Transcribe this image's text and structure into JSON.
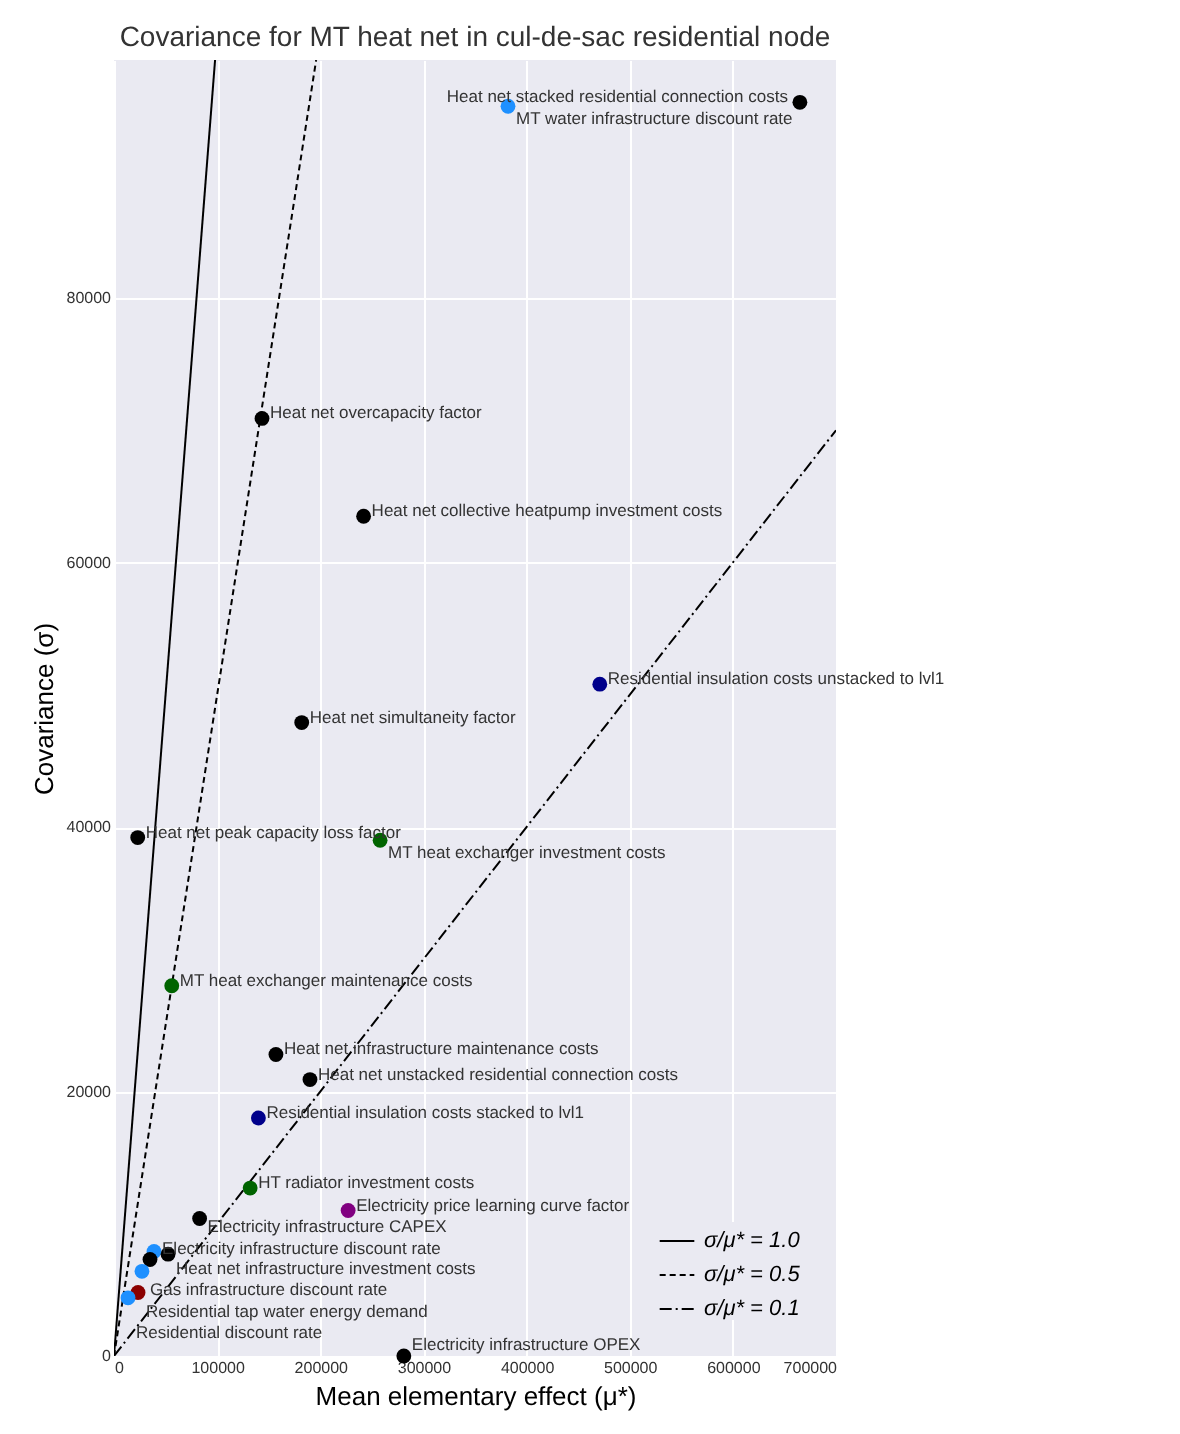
{
  "chart_data": {
    "type": "scatter",
    "title": "Covariance for MT heat net in cul-de-sac residential node",
    "xlabel": "Mean elementary effect (μ*)",
    "ylabel": "Covariance (σ)",
    "xlim": [
      0,
      700000
    ],
    "ylim": [
      0,
      98000
    ],
    "xticks": [
      0,
      100000,
      200000,
      300000,
      400000,
      500000,
      600000,
      700000
    ],
    "yticks": [
      0,
      20000,
      40000,
      60000,
      80000
    ],
    "grid": true,
    "legend": "bottom right",
    "series": [
      {
        "marker": "circle",
        "x": [
          382000,
          665000,
          143500,
          242000,
          471000,
          182000,
          23000,
          258000,
          56000,
          157000,
          190000,
          140000,
          132000,
          227000,
          83000,
          38800,
          34900,
          52400,
          27100,
          23300,
          13600,
          281000
        ],
        "values": [
          94500,
          94800,
          70900,
          63500,
          50800,
          47900,
          39200,
          39000,
          28000,
          22800,
          20900,
          18000,
          12700,
          11000,
          10400,
          7900,
          7300,
          7700,
          6400,
          4800,
          4400,
          0
        ],
        "colors": [
          "#1e90ff",
          "#000000",
          "#000000",
          "#000000",
          "#00008b",
          "#000000",
          "#000000",
          "#006400",
          "#006400",
          "#000000",
          "#000000",
          "#00008b",
          "#006400",
          "#800080",
          "#000000",
          "#1e90ff",
          "#000000",
          "#000000",
          "#1e90ff",
          "#8b0000",
          "#1e90ff",
          "#000000"
        ]
      },
      {
        "type": "line",
        "name": "σ/μ* = 1.0",
        "color": "#000000",
        "line_style": "solid",
        "x": [
          0,
          98000
        ],
        "values": [
          0,
          98000
        ]
      },
      {
        "type": "line",
        "name": "σ/μ* = 0.5",
        "color": "#000000",
        "line_style": "dotted",
        "x": [
          0,
          196000
        ],
        "values": [
          0,
          98000
        ]
      },
      {
        "type": "line",
        "name": "σ/μ* = 0.1",
        "color": "#000000",
        "line_style": "dashed",
        "x": [
          0,
          700000
        ],
        "values": [
          0,
          70000
        ]
      }
    ],
    "annotations": [
      {
        "text": "MT water infrastructure discount rate",
        "x": 382000,
        "y": 94500
      },
      {
        "text": "Heat net stacked residential connection costs",
        "x": 665000,
        "y": 94800
      },
      {
        "text": "Heat net overcapacity factor",
        "x": 143500,
        "y": 70900
      },
      {
        "text": "Heat net collective heatpump investment costs",
        "x": 242000,
        "y": 63500
      },
      {
        "text": "Residential insulation costs unstacked to lvl1",
        "x": 471000,
        "y": 50800
      },
      {
        "text": "Heat net simultaneity factor",
        "x": 182000,
        "y": 47900
      },
      {
        "text": "Heat net peak capacity loss factor",
        "x": 23000,
        "y": 39200
      },
      {
        "text": "MT heat exchanger investment costs",
        "x": 258000,
        "y": 39000
      },
      {
        "text": "MT heat exchanger maintenance costs",
        "x": 56000,
        "y": 28000
      },
      {
        "text": "Heat net infrastructure maintenance costs",
        "x": 157000,
        "y": 22800
      },
      {
        "text": "Heat net unstacked residential connection costs",
        "x": 190000,
        "y": 20900
      },
      {
        "text": "Residential insulation costs stacked to lvl1",
        "x": 140000,
        "y": 18000
      },
      {
        "text": "HT radiator investment costs",
        "x": 132000,
        "y": 12700
      },
      {
        "text": "Electricity price learning curve factor",
        "x": 227000,
        "y": 11000
      },
      {
        "text": "Electricity infrastructure CAPEX",
        "x": 83000,
        "y": 10400
      },
      {
        "text": "Electricity infrastructure discount rate",
        "x": 38800,
        "y": 7900
      },
      {
        "text": "Heat net infrastructure investment costs",
        "x": 52400,
        "y": 7700
      },
      {
        "text": "Gas infrastructure discount rate",
        "x": 27100,
        "y": 6400
      },
      {
        "text": "Residential tap water energy demand",
        "x": 23300,
        "y": 4800
      },
      {
        "text": "Residential discount rate",
        "x": 13600,
        "y": 4400
      },
      {
        "text": "Electricity infrastructure OPEX",
        "x": 281000,
        "y": 0
      }
    ]
  }
}
